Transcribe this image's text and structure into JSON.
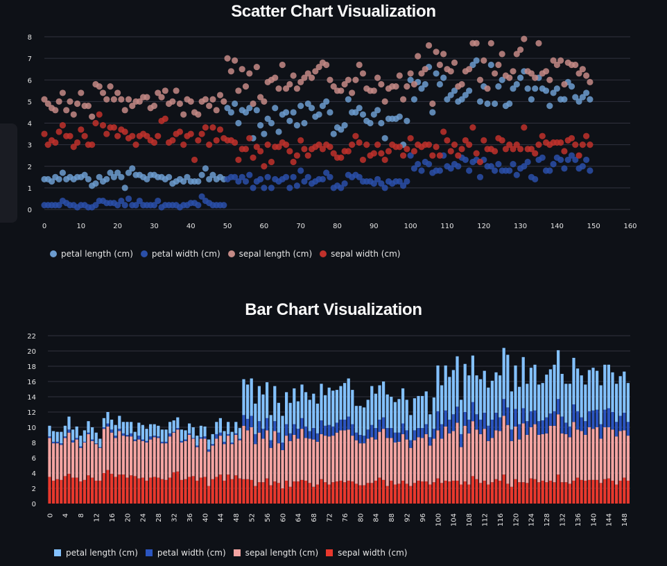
{
  "scatter": {
    "title": "Scatter Chart Visualization"
  },
  "bar": {
    "title": "Bar Chart Visualization"
  },
  "chart_data": [
    {
      "type": "scatter",
      "title": "Scatter Chart Visualization",
      "xlabel": "",
      "ylabel": "",
      "xlim": [
        0,
        160
      ],
      "ylim": [
        0,
        8
      ],
      "xticks": [
        "0",
        "10",
        "20",
        "30",
        "40",
        "50",
        "60",
        "70",
        "80",
        "90",
        "100",
        "110",
        "120",
        "130",
        "140",
        "150",
        "160"
      ],
      "yticks": [
        "0",
        "1",
        "2",
        "3",
        "4",
        "5",
        "6",
        "7",
        "8"
      ],
      "grid": true,
      "legend": "bottom",
      "series": [
        {
          "name": "petal length (cm)",
          "color": "#6c9ccf"
        },
        {
          "name": "petal width (cm)",
          "color": "#2a4fa8"
        },
        {
          "name": "sepal length (cm)",
          "color": "#c48a86"
        },
        {
          "name": "sepal width (cm)",
          "color": "#c0312b"
        }
      ]
    },
    {
      "type": "bar",
      "stacked": true,
      "title": "Bar Chart Visualization",
      "xlabel": "",
      "ylabel": "",
      "ylim": [
        0,
        22
      ],
      "yticks": [
        "0",
        "2",
        "4",
        "6",
        "8",
        "10",
        "12",
        "14",
        "16",
        "18",
        "20",
        "22"
      ],
      "xticks": [
        "0",
        "4",
        "8",
        "12",
        "16",
        "20",
        "24",
        "28",
        "32",
        "36",
        "40",
        "44",
        "48",
        "52",
        "56",
        "60",
        "64",
        "68",
        "72",
        "76",
        "80",
        "84",
        "88",
        "92",
        "96",
        "100",
        "104",
        "108",
        "112",
        "116",
        "120",
        "124",
        "128",
        "132",
        "136",
        "140",
        "144",
        "148"
      ],
      "grid": true,
      "legend": "bottom",
      "series": [
        {
          "name": "petal length (cm)",
          "color": "#83c1ff"
        },
        {
          "name": "petal width (cm)",
          "color": "#2b55c0"
        },
        {
          "name": "sepal length (cm)",
          "color": "#f4a4a2"
        },
        {
          "name": "sepal width (cm)",
          "color": "#e8382d"
        }
      ]
    }
  ],
  "iris": {
    "sepal_length": [
      5.1,
      4.9,
      4.7,
      4.6,
      5.0,
      5.4,
      4.6,
      5.0,
      4.4,
      4.9,
      5.4,
      4.8,
      4.8,
      4.3,
      5.8,
      5.7,
      5.4,
      5.1,
      5.7,
      5.1,
      5.4,
      5.1,
      4.6,
      5.1,
      4.8,
      5.0,
      5.0,
      5.2,
      5.2,
      4.7,
      4.8,
      5.4,
      5.2,
      5.5,
      4.9,
      5.0,
      5.5,
      4.9,
      4.4,
      5.1,
      5.0,
      4.5,
      4.4,
      5.0,
      5.1,
      4.8,
      5.1,
      4.6,
      5.3,
      5.0,
      7.0,
      6.4,
      6.9,
      5.5,
      6.5,
      5.7,
      6.3,
      4.9,
      6.6,
      5.2,
      5.0,
      5.9,
      6.0,
      6.1,
      5.6,
      6.7,
      5.6,
      5.8,
      6.2,
      5.6,
      5.9,
      6.1,
      6.3,
      6.1,
      6.4,
      6.6,
      6.8,
      6.7,
      6.0,
      5.7,
      5.5,
      5.5,
      5.8,
      6.0,
      5.4,
      6.0,
      6.7,
      6.3,
      5.6,
      5.5,
      5.5,
      6.1,
      5.8,
      5.0,
      5.6,
      5.7,
      5.7,
      6.2,
      5.1,
      5.7,
      6.3,
      5.8,
      7.1,
      6.3,
      6.5,
      7.6,
      4.9,
      7.3,
      6.7,
      7.2,
      6.5,
      6.4,
      6.8,
      5.7,
      5.8,
      6.4,
      6.5,
      7.7,
      7.7,
      6.0,
      6.9,
      5.6,
      7.7,
      6.3,
      6.7,
      7.2,
      6.2,
      6.1,
      6.4,
      7.2,
      7.4,
      7.9,
      6.4,
      6.3,
      6.1,
      7.7,
      6.3,
      6.4,
      6.0,
      6.9,
      6.7,
      6.9,
      5.8,
      6.8,
      6.7,
      6.7,
      6.3,
      6.5,
      6.2,
      5.9
    ],
    "sepal_width": [
      3.5,
      3.0,
      3.2,
      3.1,
      3.6,
      3.9,
      3.4,
      3.4,
      2.9,
      3.1,
      3.7,
      3.4,
      3.0,
      3.0,
      4.0,
      4.4,
      3.9,
      3.5,
      3.8,
      3.8,
      3.4,
      3.7,
      3.6,
      3.3,
      3.4,
      3.0,
      3.4,
      3.5,
      3.4,
      3.2,
      3.1,
      3.4,
      4.1,
      4.2,
      3.1,
      3.2,
      3.5,
      3.6,
      3.0,
      3.4,
      3.5,
      2.3,
      3.2,
      3.5,
      3.8,
      3.0,
      3.8,
      3.2,
      3.7,
      3.3,
      3.2,
      3.2,
      3.1,
      2.3,
      2.8,
      2.8,
      3.3,
      2.4,
      2.9,
      2.7,
      2.0,
      3.0,
      2.2,
      2.9,
      2.9,
      3.1,
      3.0,
      2.7,
      2.2,
      2.5,
      3.2,
      2.8,
      2.5,
      2.8,
      2.9,
      3.0,
      2.8,
      3.0,
      2.9,
      2.6,
      2.4,
      2.4,
      2.7,
      2.7,
      3.0,
      3.4,
      3.1,
      2.3,
      3.0,
      2.5,
      2.6,
      3.0,
      2.6,
      2.3,
      2.7,
      3.0,
      2.9,
      2.9,
      2.5,
      2.8,
      3.3,
      2.7,
      3.0,
      2.9,
      3.0,
      3.0,
      2.5,
      2.9,
      2.5,
      3.6,
      3.2,
      2.7,
      3.0,
      2.5,
      2.8,
      3.2,
      3.0,
      3.8,
      2.6,
      2.2,
      3.2,
      2.8,
      2.8,
      2.7,
      3.3,
      3.2,
      2.8,
      3.0,
      2.8,
      3.0,
      2.8,
      3.8,
      2.8,
      2.8,
      2.6,
      3.0,
      3.4,
      3.1,
      3.0,
      3.1,
      3.1,
      3.1,
      2.7,
      3.2,
      3.3,
      3.0,
      2.5,
      3.0,
      3.4,
      3.0
    ],
    "petal_length": [
      1.4,
      1.4,
      1.3,
      1.5,
      1.4,
      1.7,
      1.4,
      1.5,
      1.4,
      1.5,
      1.5,
      1.6,
      1.4,
      1.1,
      1.2,
      1.5,
      1.3,
      1.4,
      1.7,
      1.5,
      1.7,
      1.5,
      1.0,
      1.7,
      1.9,
      1.6,
      1.6,
      1.5,
      1.4,
      1.6,
      1.6,
      1.5,
      1.5,
      1.4,
      1.5,
      1.2,
      1.3,
      1.4,
      1.3,
      1.5,
      1.3,
      1.3,
      1.3,
      1.6,
      1.9,
      1.4,
      1.6,
      1.4,
      1.5,
      1.4,
      4.7,
      4.5,
      4.9,
      4.0,
      4.6,
      4.5,
      4.7,
      3.3,
      4.6,
      3.9,
      3.5,
      4.2,
      4.0,
      4.7,
      3.6,
      4.4,
      4.5,
      4.1,
      4.5,
      3.9,
      4.8,
      4.0,
      4.9,
      4.7,
      4.3,
      4.4,
      4.8,
      5.0,
      4.5,
      3.5,
      3.8,
      3.7,
      3.9,
      5.1,
      4.5,
      4.5,
      4.7,
      4.4,
      4.1,
      4.0,
      4.4,
      4.6,
      4.0,
      3.3,
      4.2,
      4.2,
      4.2,
      4.3,
      3.0,
      4.1,
      6.0,
      5.1,
      5.9,
      5.6,
      5.8,
      6.6,
      4.5,
      6.3,
      5.8,
      6.1,
      5.1,
      5.3,
      5.5,
      5.0,
      5.1,
      5.3,
      5.5,
      6.7,
      6.9,
      5.0,
      5.7,
      4.9,
      6.7,
      4.9,
      5.7,
      6.0,
      4.8,
      4.9,
      5.6,
      5.8,
      6.1,
      6.4,
      5.6,
      5.1,
      5.6,
      6.1,
      5.6,
      5.5,
      4.8,
      5.4,
      5.6,
      5.1,
      5.1,
      5.9,
      5.7,
      5.2,
      5.0,
      5.2,
      5.4,
      5.1
    ],
    "petal_width": [
      0.2,
      0.2,
      0.2,
      0.2,
      0.2,
      0.4,
      0.3,
      0.2,
      0.2,
      0.1,
      0.2,
      0.2,
      0.1,
      0.1,
      0.2,
      0.4,
      0.4,
      0.3,
      0.3,
      0.3,
      0.2,
      0.4,
      0.2,
      0.5,
      0.2,
      0.2,
      0.4,
      0.2,
      0.2,
      0.2,
      0.2,
      0.4,
      0.1,
      0.2,
      0.2,
      0.2,
      0.2,
      0.1,
      0.2,
      0.2,
      0.3,
      0.3,
      0.2,
      0.6,
      0.4,
      0.3,
      0.2,
      0.2,
      0.2,
      0.2,
      1.4,
      1.5,
      1.5,
      1.3,
      1.5,
      1.3,
      1.6,
      1.0,
      1.3,
      1.4,
      1.0,
      1.5,
      1.0,
      1.4,
      1.3,
      1.4,
      1.5,
      1.0,
      1.5,
      1.1,
      1.8,
      1.3,
      1.5,
      1.2,
      1.3,
      1.4,
      1.4,
      1.7,
      1.5,
      1.0,
      1.1,
      1.0,
      1.2,
      1.6,
      1.5,
      1.6,
      1.5,
      1.3,
      1.3,
      1.3,
      1.2,
      1.4,
      1.2,
      1.0,
      1.3,
      1.2,
      1.3,
      1.3,
      1.1,
      1.3,
      2.5,
      1.9,
      2.1,
      1.8,
      2.2,
      2.1,
      1.7,
      1.8,
      1.8,
      2.5,
      2.0,
      1.9,
      2.1,
      2.0,
      2.4,
      2.3,
      1.8,
      2.2,
      2.3,
      1.5,
      2.3,
      2.0,
      2.0,
      1.8,
      2.1,
      1.8,
      1.8,
      1.8,
      2.1,
      1.6,
      1.9,
      2.0,
      2.2,
      1.5,
      1.4,
      2.3,
      2.4,
      1.8,
      1.8,
      2.1,
      2.4,
      2.3,
      1.9,
      2.3,
      2.5,
      2.3,
      1.9,
      2.0,
      2.3,
      1.8
    ]
  }
}
